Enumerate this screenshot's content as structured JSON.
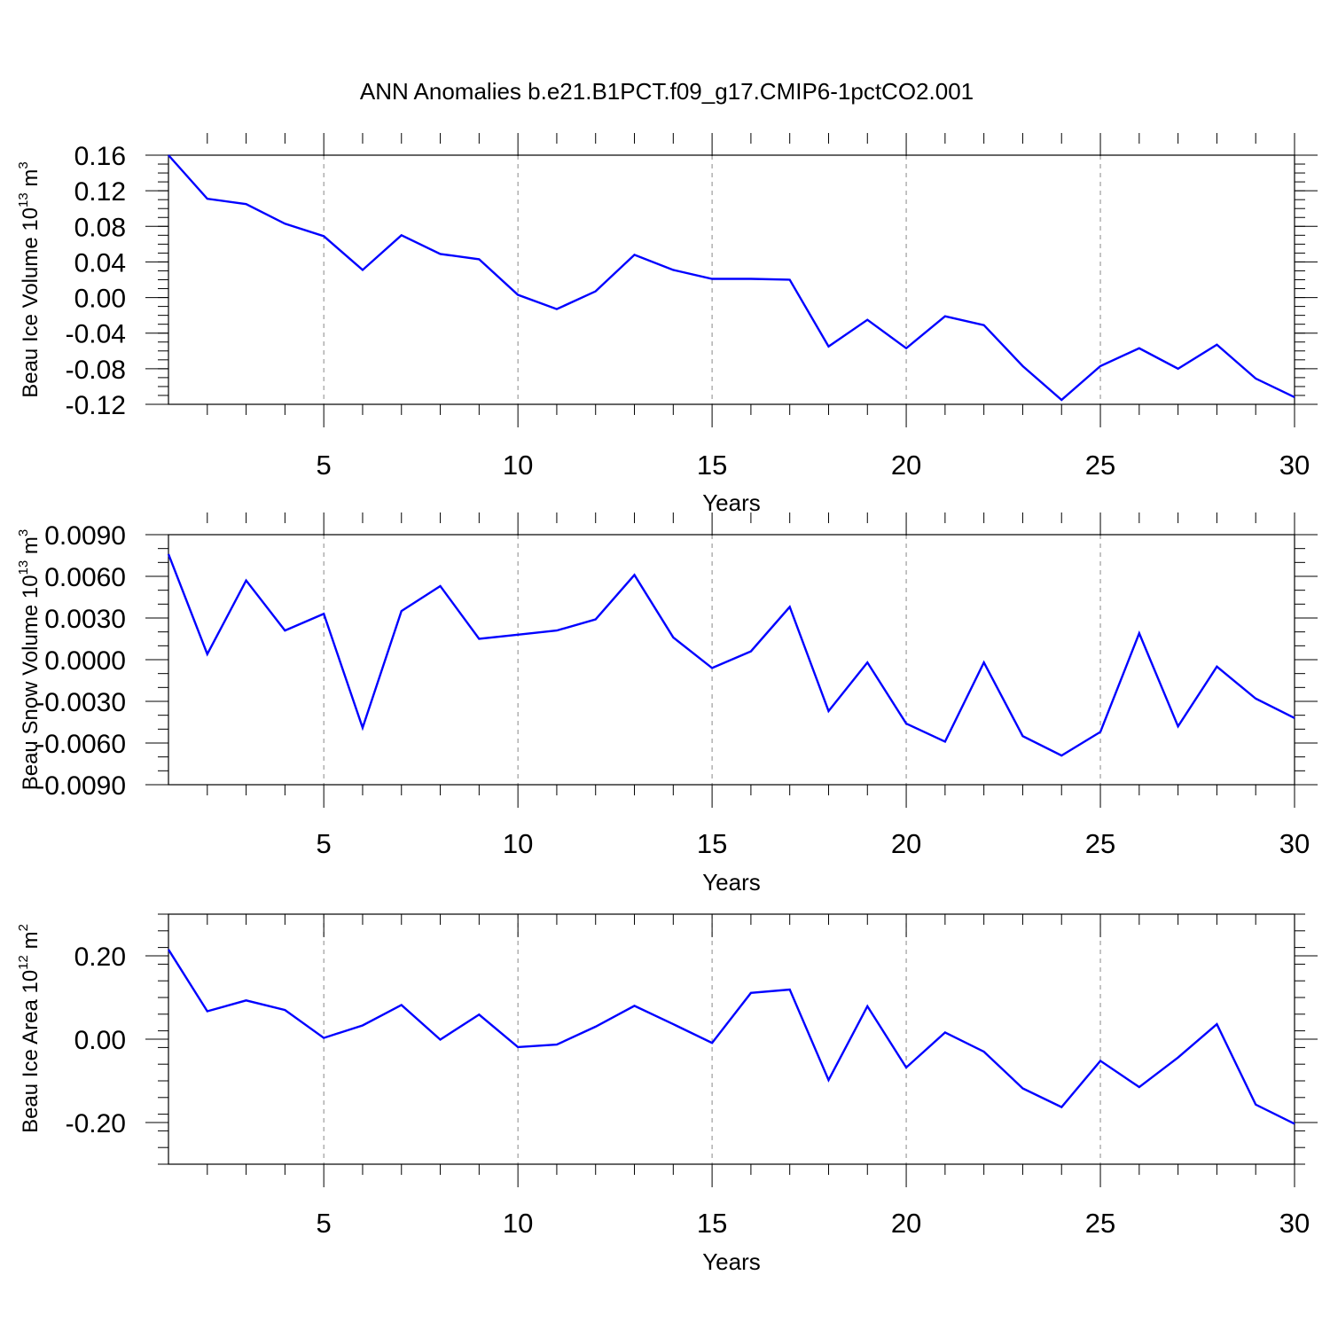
{
  "chart_data": [
    {
      "type": "line",
      "title": "ANN Anomalies b.e21.B1PCT.f09_g17.CMIP6-1pctCO2.001",
      "xlabel": "Years",
      "ylabel": {
        "text": "Beau Ice Volume 10",
        "exponent": "13",
        "unit": " m",
        "unit_exponent": "3"
      },
      "xlim": [
        1,
        30
      ],
      "ylim": [
        -0.12,
        0.16
      ],
      "x_ticks": [
        5,
        10,
        15,
        20,
        25,
        30
      ],
      "x_tick_labels": [
        "5",
        "10",
        "15",
        "20",
        "25",
        "30"
      ],
      "y_ticks": [
        0.16,
        0.12,
        0.08,
        0.04,
        0.0,
        -0.04,
        -0.08,
        -0.12
      ],
      "y_tick_labels": [
        "0.16",
        "0.12",
        "0.08",
        "0.04",
        "0.00",
        "-0.04",
        "-0.08",
        "-0.12"
      ],
      "y_minor_step": 0.01,
      "grid": "dashed vertical at x ticks",
      "line_color": "#0000ff",
      "series": [
        {
          "name": "Beau Ice Volume",
          "x": [
            1,
            2,
            3,
            4,
            5,
            6,
            7,
            8,
            9,
            10,
            11,
            12,
            13,
            14,
            15,
            16,
            17,
            18,
            19,
            20,
            21,
            22,
            23,
            24,
            25,
            26,
            27,
            28,
            29,
            30
          ],
          "values": [
            0.16,
            0.111,
            0.105,
            0.083,
            0.069,
            0.031,
            0.07,
            0.049,
            0.043,
            0.003,
            -0.013,
            0.007,
            0.048,
            0.031,
            0.021,
            0.021,
            0.02,
            -0.055,
            -0.025,
            -0.057,
            -0.021,
            -0.031,
            -0.077,
            -0.115,
            -0.077,
            -0.057,
            -0.08,
            -0.053,
            -0.091,
            -0.112
          ]
        }
      ]
    },
    {
      "type": "line",
      "xlabel": "Years",
      "ylabel": {
        "text": "Beau Snow Volume 10",
        "exponent": "13",
        "unit": " m",
        "unit_exponent": "3"
      },
      "xlim": [
        1,
        30
      ],
      "ylim": [
        -0.009,
        0.009
      ],
      "x_ticks": [
        5,
        10,
        15,
        20,
        25,
        30
      ],
      "x_tick_labels": [
        "5",
        "10",
        "15",
        "20",
        "25",
        "30"
      ],
      "y_ticks": [
        0.009,
        0.006,
        0.003,
        0.0,
        -0.003,
        -0.006,
        -0.009
      ],
      "y_tick_labels": [
        "0.0090",
        "0.0060",
        "0.0030",
        "0.0000",
        "-0.0030",
        "-0.0060",
        "-0.0090"
      ],
      "y_minor_step": 0.001,
      "grid": "dashed vertical at x ticks",
      "line_color": "#0000ff",
      "series": [
        {
          "name": "Beau Snow Volume",
          "x": [
            1,
            2,
            3,
            4,
            5,
            6,
            7,
            8,
            9,
            10,
            11,
            12,
            13,
            14,
            15,
            16,
            17,
            18,
            19,
            20,
            21,
            22,
            23,
            24,
            25,
            26,
            27,
            28,
            29,
            30
          ],
          "values": [
            0.0076,
            0.0004,
            0.0057,
            0.0021,
            0.0033,
            -0.0049,
            0.0035,
            0.0053,
            0.0015,
            0.0018,
            0.0021,
            0.0029,
            0.0061,
            0.0016,
            -0.0006,
            0.0006,
            0.0038,
            -0.0037,
            -0.0002,
            -0.0046,
            -0.0059,
            -0.0002,
            -0.0055,
            -0.0069,
            -0.0052,
            0.0019,
            -0.0048,
            -0.0005,
            -0.0028,
            -0.0042
          ]
        }
      ]
    },
    {
      "type": "line",
      "xlabel": "Years",
      "ylabel": {
        "text": "Beau Ice Area 10",
        "exponent": "12",
        "unit": " m",
        "unit_exponent": "2"
      },
      "xlim": [
        1,
        30
      ],
      "ylim": [
        -0.3,
        0.3
      ],
      "x_ticks": [
        5,
        10,
        15,
        20,
        25,
        30
      ],
      "x_tick_labels": [
        "5",
        "10",
        "15",
        "20",
        "25",
        "30"
      ],
      "y_ticks": [
        0.2,
        0.0,
        -0.2
      ],
      "y_tick_labels": [
        "0.20",
        "0.00",
        "-0.20"
      ],
      "y_minor_step": 0.04,
      "grid": "dashed vertical at x ticks",
      "line_color": "#0000ff",
      "series": [
        {
          "name": "Beau Ice Area",
          "x": [
            1,
            2,
            3,
            4,
            5,
            6,
            7,
            8,
            9,
            10,
            11,
            12,
            13,
            14,
            15,
            16,
            17,
            18,
            19,
            20,
            21,
            22,
            23,
            24,
            25,
            26,
            27,
            28,
            29,
            30
          ],
          "values": [
            0.215,
            0.067,
            0.093,
            0.07,
            0.003,
            0.033,
            0.082,
            -0.001,
            0.059,
            -0.019,
            -0.013,
            0.03,
            0.08,
            0.036,
            -0.009,
            0.111,
            0.119,
            -0.098,
            0.079,
            -0.068,
            0.016,
            -0.03,
            -0.118,
            -0.163,
            -0.052,
            -0.115,
            -0.044,
            0.036,
            -0.157,
            -0.203
          ]
        }
      ]
    }
  ]
}
